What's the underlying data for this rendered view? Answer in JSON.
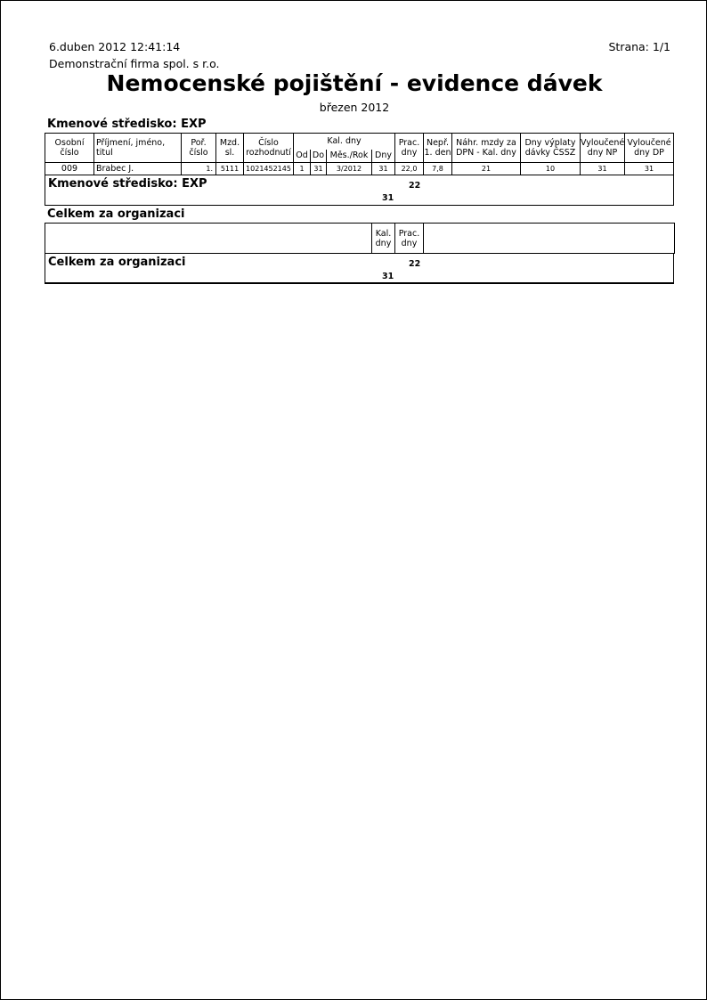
{
  "header": {
    "datetime": "6.duben 2012  12:41:14",
    "page": "Strana: 1/1",
    "company": "Demonstrační firma spol. s r.o.",
    "title": "Nemocenské pojištění - evidence dávek",
    "period": "březen 2012"
  },
  "section": {
    "title": "Kmenové středisko: EXP",
    "columns": {
      "osobni": [
        "Osobní",
        "číslo"
      ],
      "prijmeni": [
        "Příjmení, jméno,",
        "titul"
      ],
      "por": [
        "Poř.",
        "číslo"
      ],
      "mzd": [
        "Mzd.",
        "sl."
      ],
      "cislo": [
        "Číslo",
        "rozhodnutí"
      ],
      "kal": "Kal. dny",
      "od": "Od",
      "do": "Do",
      "mes": "Měs./Rok",
      "dny": "Dny",
      "prac": [
        "Prac.",
        "dny"
      ],
      "nepr": [
        "Nepř.",
        "1. den"
      ],
      "nahr": [
        "Náhr. mzdy za",
        "DPN - Kal. dny"
      ],
      "vyplaty": [
        "Dny výplaty",
        "dávky ČSSZ"
      ],
      "vylNP": [
        "Vyloučené",
        "dny NP"
      ],
      "vylDP": [
        "Vyloučené",
        "dny DP"
      ]
    },
    "rows": [
      {
        "osobni": "009",
        "prijmeni": "Brabec J.",
        "por": "1.",
        "mzd": "5111",
        "cislo": "1021452145",
        "od": "1",
        "do": "31",
        "mes": "3/2012",
        "dny": "31",
        "prac": "22,0",
        "nepr": "7,8",
        "nahr": "21",
        "vyplaty": "10",
        "vylNP": "31",
        "vylDP": "31"
      }
    ],
    "subtotal": {
      "label": "Kmenové středisko: EXP",
      "prac": "22",
      "kal": "31"
    }
  },
  "total": {
    "title": "Celkem za organizaci",
    "columns": {
      "kal": [
        "Kal.",
        "dny"
      ],
      "prac": [
        "Prac.",
        "dny"
      ]
    },
    "label": "Celkem za organizaci",
    "prac": "22",
    "kal": "31"
  }
}
